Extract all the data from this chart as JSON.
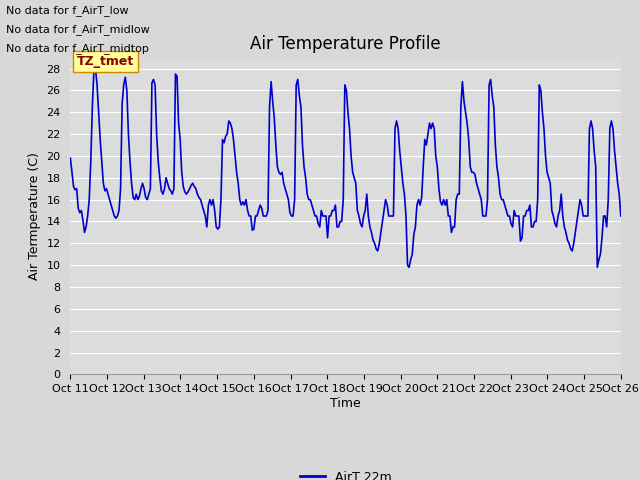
{
  "title": "Air Temperature Profile",
  "ylabel": "Air Termperature (C)",
  "xlabel": "Time",
  "legend_label": "AirT 22m",
  "line_color": "#0000cc",
  "background_color": "#d8d8d8",
  "plot_bg_color": "#dcdcdc",
  "ylim": [
    0,
    29
  ],
  "yticks": [
    0,
    2,
    4,
    6,
    8,
    10,
    12,
    14,
    16,
    18,
    20,
    22,
    24,
    26,
    28
  ],
  "no_data_texts": [
    "No data for f_AirT_low",
    "No data for f_AirT_midlow",
    "No data for f_AirT_midtop"
  ],
  "tz_label": "TZ_tmet",
  "x_tick_labels": [
    "Oct 11",
    "Oct 12",
    "Oct 13",
    "Oct 14",
    "Oct 15",
    "Oct 16",
    "Oct 17",
    "Oct 18",
    "Oct 19",
    "Oct 20",
    "Oct 21",
    "Oct 22",
    "Oct 23",
    "Oct 24",
    "Oct 25",
    "Oct 26"
  ],
  "time_series": [
    19.8,
    18.5,
    17.2,
    16.9,
    17.0,
    15.2,
    14.8,
    15.0,
    14.1,
    13.0,
    13.5,
    14.5,
    16.0,
    19.5,
    24.5,
    27.8,
    28.0,
    26.5,
    24.0,
    21.5,
    19.5,
    17.5,
    16.8,
    17.0,
    16.5,
    16.0,
    15.5,
    15.0,
    14.5,
    14.3,
    14.5,
    15.0,
    17.0,
    24.8,
    26.5,
    27.2,
    26.0,
    22.0,
    19.5,
    17.5,
    16.2,
    16.0,
    16.5,
    16.0,
    16.3,
    17.0,
    17.5,
    17.0,
    16.2,
    16.0,
    16.5,
    17.0,
    26.7,
    27.0,
    26.5,
    22.0,
    19.5,
    18.0,
    16.8,
    16.5,
    17.0,
    18.0,
    17.5,
    17.0,
    16.8,
    16.5,
    17.0,
    27.5,
    27.3,
    23.0,
    21.5,
    18.5,
    17.2,
    16.7,
    16.5,
    16.7,
    17.0,
    17.3,
    17.5,
    17.2,
    17.0,
    16.5,
    16.2,
    16.0,
    15.5,
    15.0,
    14.5,
    13.5,
    15.5,
    16.0,
    15.5,
    16.0,
    15.0,
    13.5,
    13.3,
    13.5,
    16.0,
    21.5,
    21.2,
    21.8,
    22.0,
    23.2,
    23.0,
    22.5,
    21.5,
    20.0,
    18.5,
    17.5,
    16.0,
    15.5,
    15.8,
    15.5,
    16.0,
    15.0,
    14.5,
    14.5,
    13.2,
    13.3,
    14.5,
    14.5,
    15.0,
    15.5,
    15.2,
    14.5,
    14.5,
    14.5,
    15.0,
    24.5,
    26.8,
    25.0,
    23.5,
    21.0,
    19.0,
    18.5,
    18.3,
    18.5,
    17.5,
    17.0,
    16.5,
    16.0,
    14.8,
    14.5,
    14.5,
    16.0,
    26.5,
    27.0,
    25.5,
    24.5,
    21.0,
    19.0,
    18.0,
    16.5,
    16.0,
    16.0,
    15.5,
    15.0,
    14.5,
    14.5,
    13.8,
    13.5,
    15.0,
    14.5,
    14.5,
    14.5,
    12.5,
    14.5,
    14.5,
    15.0,
    15.0,
    15.5,
    13.5,
    13.5,
    14.0,
    14.0,
    16.0,
    26.5,
    26.0,
    24.0,
    22.5,
    20.0,
    18.5,
    18.0,
    17.5,
    15.0,
    14.5,
    13.8,
    13.5,
    14.5,
    15.0,
    16.5,
    14.5,
    13.5,
    13.0,
    12.3,
    12.0,
    11.5,
    11.3,
    12.0,
    13.0,
    14.0,
    15.0,
    16.0,
    15.5,
    14.5,
    14.5,
    14.5,
    14.5,
    22.5,
    23.2,
    22.5,
    20.5,
    19.0,
    17.5,
    16.5,
    14.5,
    10.0,
    9.8,
    10.5,
    11.0,
    12.8,
    13.5,
    15.5,
    16.0,
    15.5,
    16.2,
    19.0,
    21.5,
    21.0,
    22.0,
    23.0,
    22.5,
    23.0,
    22.5,
    20.0,
    19.0,
    17.0,
    15.8,
    15.5,
    16.0,
    15.5,
    16.0,
    14.5,
    14.5,
    13.0,
    13.5,
    13.5,
    16.0,
    16.5,
    16.5,
    24.5,
    26.8,
    25.0,
    24.0,
    23.0,
    21.5,
    19.0,
    18.5,
    18.5,
    18.3,
    17.5,
    17.0,
    16.5,
    16.0,
    14.5,
    14.5,
    14.5,
    16.0,
    26.5,
    27.0,
    25.5,
    24.5,
    21.0,
    19.0,
    18.0,
    16.5,
    16.0,
    16.0,
    15.5,
    15.0,
    14.5,
    14.5,
    13.8,
    13.5,
    15.0,
    14.5,
    14.5,
    14.5,
    12.2,
    12.5,
    14.5,
    14.5,
    15.0,
    15.0,
    15.5,
    13.5,
    13.5,
    14.0,
    14.0,
    16.0,
    26.5,
    26.0,
    24.0,
    22.5,
    20.0,
    18.5,
    18.0,
    17.5,
    15.0,
    14.5,
    13.8,
    13.5,
    14.5,
    15.0,
    16.5,
    14.5,
    13.5,
    13.0,
    12.3,
    12.0,
    11.5,
    11.3,
    12.0,
    13.0,
    14.0,
    15.0,
    16.0,
    15.5,
    14.5,
    14.5,
    14.5,
    14.5,
    22.5,
    23.2,
    22.5,
    20.5,
    19.0,
    9.8,
    10.5,
    11.0,
    12.5,
    14.5,
    14.5,
    13.5,
    16.0,
    22.5,
    23.2,
    22.5,
    20.5,
    19.0,
    17.5,
    16.5,
    14.5
  ],
  "title_fontsize": 12,
  "axis_fontsize": 9,
  "tick_fontsize": 8,
  "legend_fontsize": 9
}
